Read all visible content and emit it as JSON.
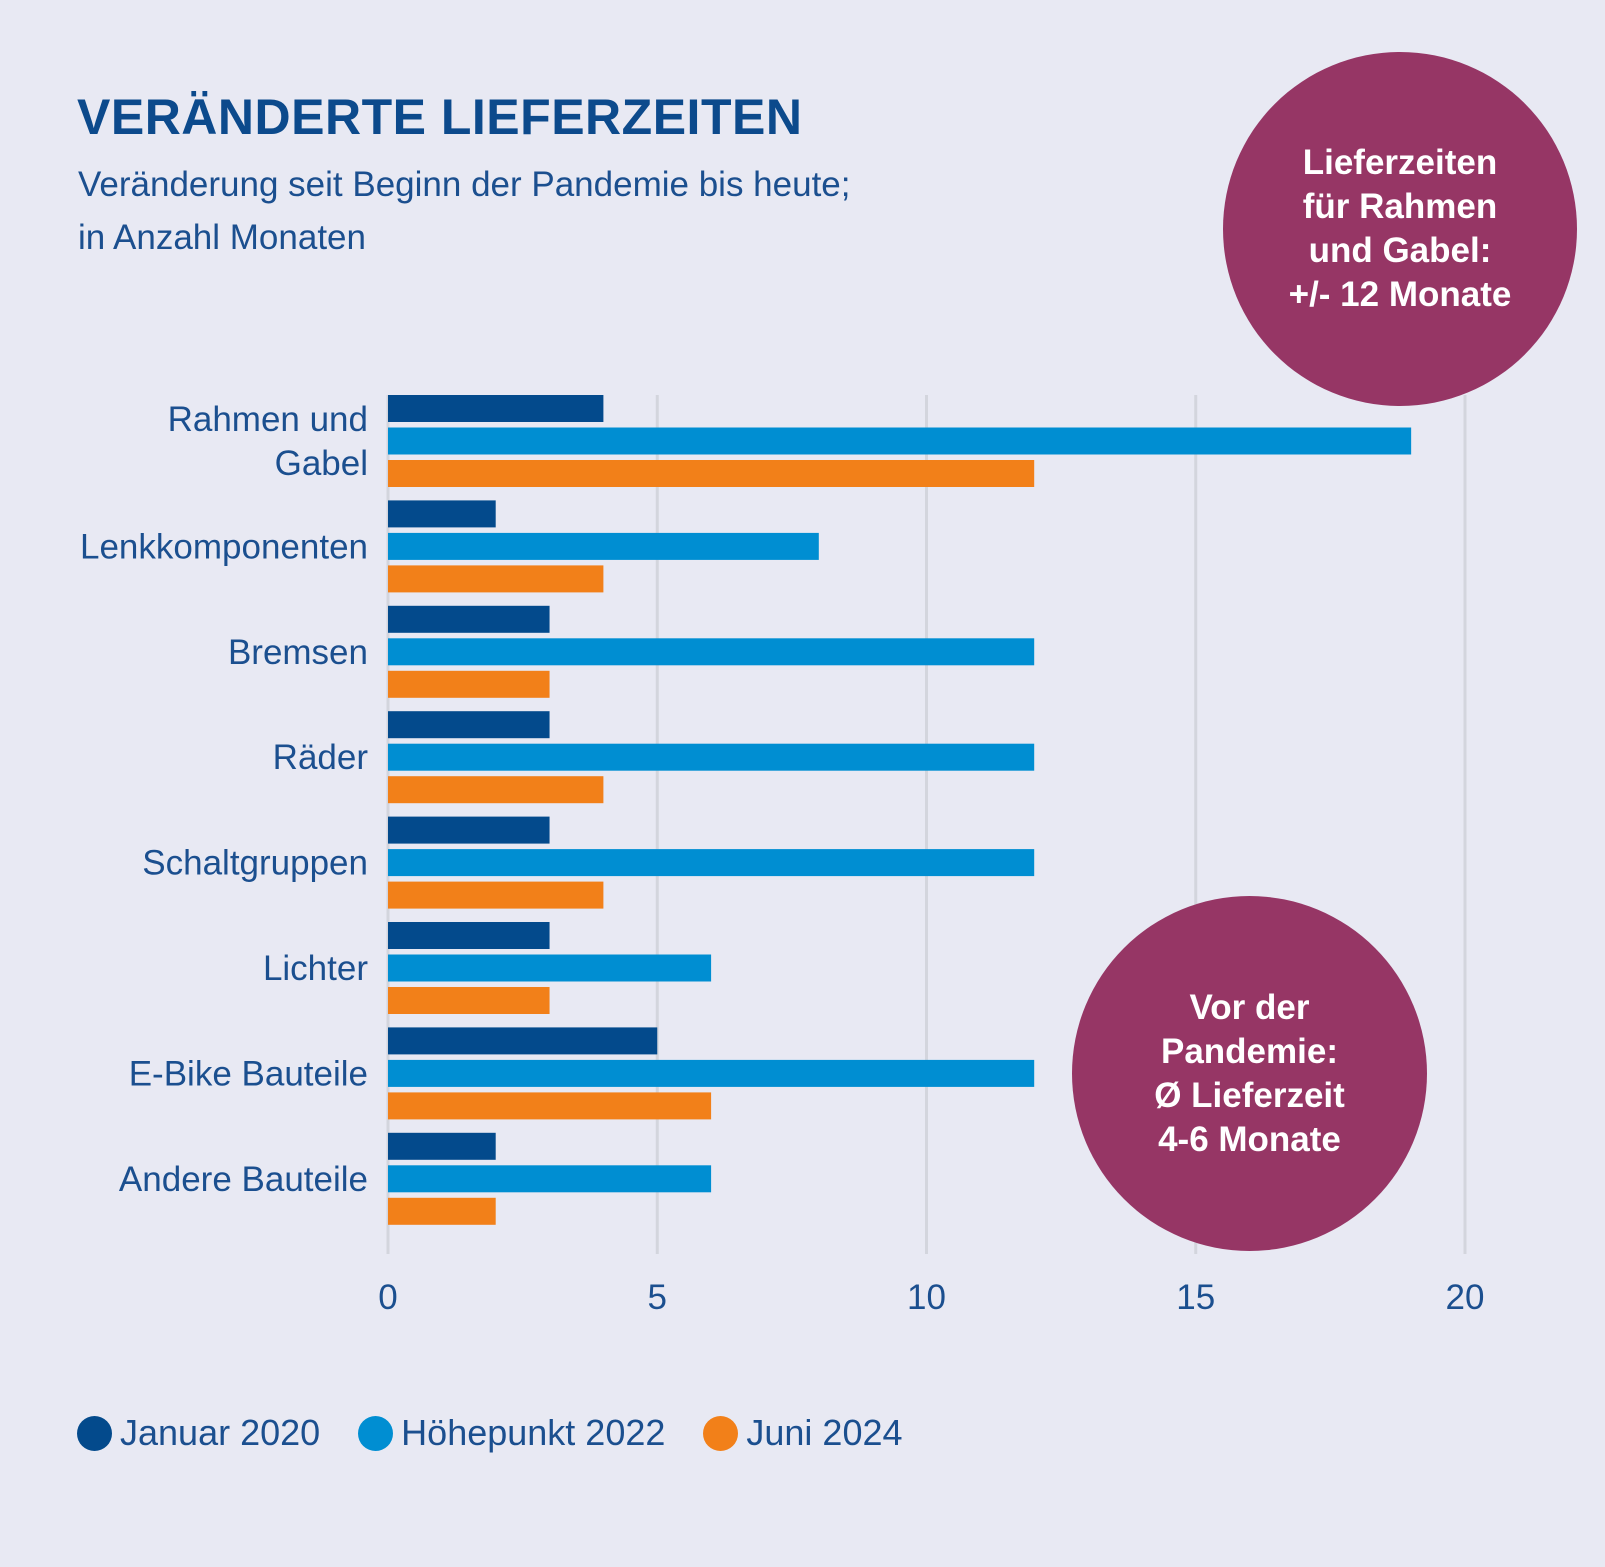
{
  "header": {
    "title": "VERÄNDERTE LIEFERZEITEN",
    "subtitle": "Veränderung seit Beginn der Pandemie bis heute;\nin Anzahl Monaten"
  },
  "callouts": {
    "top": "Lieferzeiten\nfür Rahmen\nund Gabel:\n+/- 12 Monate",
    "bottom": "Vor der\nPandemie:\nØ Lieferzeit\n4-6 Monate"
  },
  "colors": {
    "background": "#e8e9f3",
    "text": "#1b4f8f",
    "callout": "#963665",
    "grid": "#d3d5dd"
  },
  "chart_data": {
    "type": "bar",
    "orientation": "horizontal",
    "title": "VERÄNDERTE LIEFERZEITEN",
    "subtitle": "Veränderung seit Beginn der Pandemie bis heute; in Anzahl Monaten",
    "xlabel": "",
    "ylabel": "",
    "xlim": [
      0,
      20
    ],
    "xticks": [
      0,
      5,
      10,
      15,
      20
    ],
    "grid": true,
    "legend_position": "bottom-left",
    "categories": [
      "Rahmen und\nGabel",
      "Lenkkomponenten",
      "Bremsen",
      "Räder",
      "Schaltgruppen",
      "Lichter",
      "E-Bike Bauteile",
      "Andere Bauteile"
    ],
    "series": [
      {
        "name": "Januar 2020",
        "color": "#034a8c",
        "values": [
          4,
          2,
          3,
          3,
          3,
          3,
          5,
          2
        ]
      },
      {
        "name": "Höhepunkt 2022",
        "color": "#008ed2",
        "values": [
          19,
          8,
          12,
          12,
          12,
          6,
          12,
          6
        ]
      },
      {
        "name": "Juni 2024",
        "color": "#f28019",
        "values": [
          12,
          4,
          3,
          4,
          4,
          3,
          6,
          2
        ]
      }
    ]
  }
}
